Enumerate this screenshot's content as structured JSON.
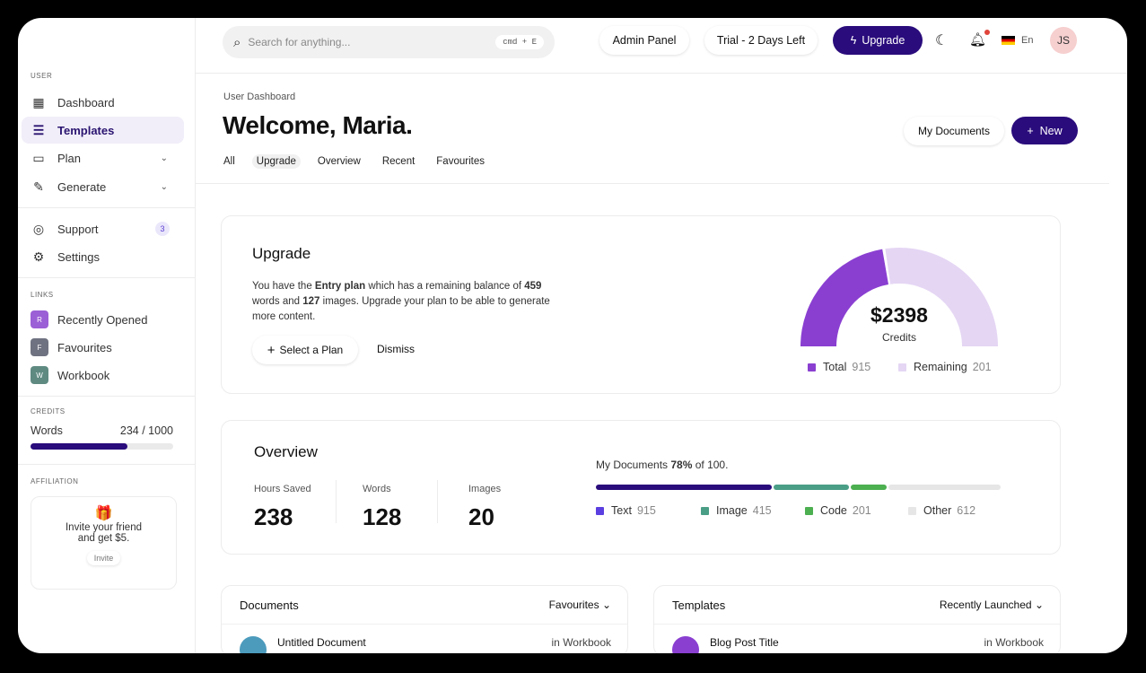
{
  "sidebar": {
    "user_label": "USER",
    "items": [
      {
        "label": "Dashboard",
        "icon": "grid-icon"
      },
      {
        "label": "Templates",
        "icon": "document-icon"
      },
      {
        "label": "Plan",
        "icon": "wallet-icon"
      },
      {
        "label": "Generate",
        "icon": "pencil-icon"
      }
    ],
    "support": {
      "label": "Support",
      "badge": "3"
    },
    "settings": {
      "label": "Settings"
    },
    "links_label": "LINKS",
    "links": [
      {
        "letter": "R",
        "label": "Recently Opened",
        "color": "#9b5fd6"
      },
      {
        "letter": "F",
        "label": "Favourites",
        "color": "#6f7280"
      },
      {
        "letter": "W",
        "label": "Workbook",
        "color": "#5f8a82"
      }
    ],
    "credits_label": "CREDITS",
    "credits": {
      "label": "Words",
      "value": "234 / 1000",
      "fill_percent": 68
    },
    "affiliation_label": "AFFILIATION",
    "affiliation": {
      "line1": "Invite your friend",
      "line2": "and get $5.",
      "button": "Invite"
    }
  },
  "header": {
    "search_placeholder": "Search for anything...",
    "shortcut": "cmd + E",
    "admin": "Admin Panel",
    "trial": "Trial - 2 Days Left",
    "upgrade": "Upgrade",
    "lang": "En",
    "avatar": "JS"
  },
  "page": {
    "breadcrumb": "User Dashboard",
    "title": "Welcome, Maria.",
    "tabs": [
      "All",
      "Upgrade",
      "Overview",
      "Recent",
      "Favourites"
    ],
    "my_documents": "My Documents",
    "new": "New"
  },
  "upgrade": {
    "title": "Upgrade",
    "t1": "You have the ",
    "plan": "Entry plan",
    "t2": " which has a remaining balance of ",
    "words": "459",
    "t3": " words and ",
    "images": "127",
    "t4": " images. Upgrade your plan to be able to generate more content.",
    "select": "Select a Plan",
    "dismiss": "Dismiss",
    "gauge": {
      "amount": "$2398",
      "label": "Credits",
      "total_label": "Total",
      "total": "915",
      "remaining_label": "Remaining",
      "remaining": "201",
      "total_color": "#8a3fd1",
      "remaining_color": "#e5d6f4"
    }
  },
  "overview": {
    "title": "Overview",
    "stats": [
      {
        "label": "Hours Saved",
        "value": "238"
      },
      {
        "label": "Words",
        "value": "128"
      },
      {
        "label": "Images",
        "value": "20"
      }
    ],
    "docs_pre": "My Documents ",
    "docs_pct": "78%",
    "docs_post": " of 100.",
    "legend": [
      {
        "label": "Text",
        "value": "915",
        "color": "#2a0c7c"
      },
      {
        "label": "Image",
        "value": "415",
        "color": "#4a9e86"
      },
      {
        "label": "Code",
        "value": "201",
        "color": "#4caf50"
      },
      {
        "label": "Other",
        "value": "612",
        "color": "#e6e6e6"
      }
    ]
  },
  "documents": {
    "title": "Documents",
    "filter": "Favourites",
    "row": {
      "name": "Untitled Document",
      "where": "in Workbook"
    }
  },
  "templates": {
    "title": "Templates",
    "filter": "Recently Launched",
    "row": {
      "name": "Blog Post Title",
      "where": "in Workbook"
    }
  }
}
